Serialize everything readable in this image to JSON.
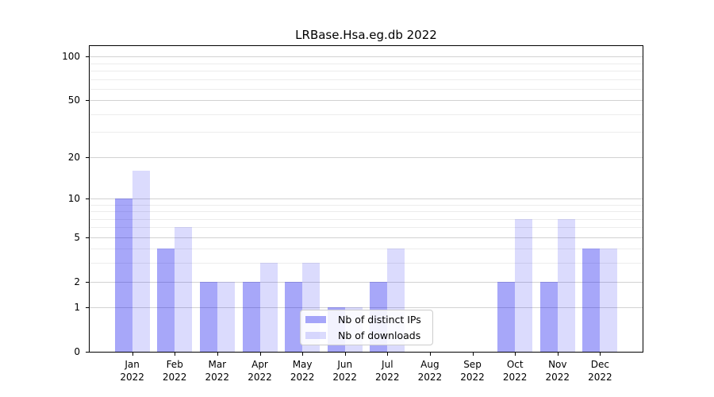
{
  "chart_data": {
    "type": "bar",
    "title": "LRBase.Hsa.eg.db 2022",
    "categories": [
      "Jan",
      "Feb",
      "Mar",
      "Apr",
      "May",
      "Jun",
      "Jul",
      "Aug",
      "Sep",
      "Oct",
      "Nov",
      "Dec"
    ],
    "category_year": "2022",
    "series": [
      {
        "name": "Nb of distinct IPs",
        "color": "rgba(16,16,240,0.37)",
        "values": [
          10,
          4,
          2,
          2,
          2,
          1,
          2,
          0,
          0,
          2,
          2,
          4
        ]
      },
      {
        "name": "Nb of downloads",
        "color": "rgba(16,16,240,0.15)",
        "values": [
          16,
          6,
          2,
          3,
          3,
          1,
          4,
          0,
          0,
          7,
          7,
          4
        ]
      }
    ],
    "yscale": "log1p",
    "ylim": [
      0,
      118
    ],
    "yticks": [
      0,
      1,
      2,
      5,
      10,
      20,
      50,
      100
    ],
    "minor_gridlines": [
      3,
      4,
      6,
      7,
      8,
      9,
      30,
      40,
      60,
      70,
      80,
      90
    ],
    "grid": true,
    "legend": {
      "position": "lower-center",
      "labels": [
        "Nb of distinct IPs",
        "Nb of downloads"
      ]
    },
    "colors": {
      "axis": "#000000",
      "major_grid": "#d2d2d2",
      "minor_grid": "#ececec",
      "background": "#ffffff"
    }
  }
}
